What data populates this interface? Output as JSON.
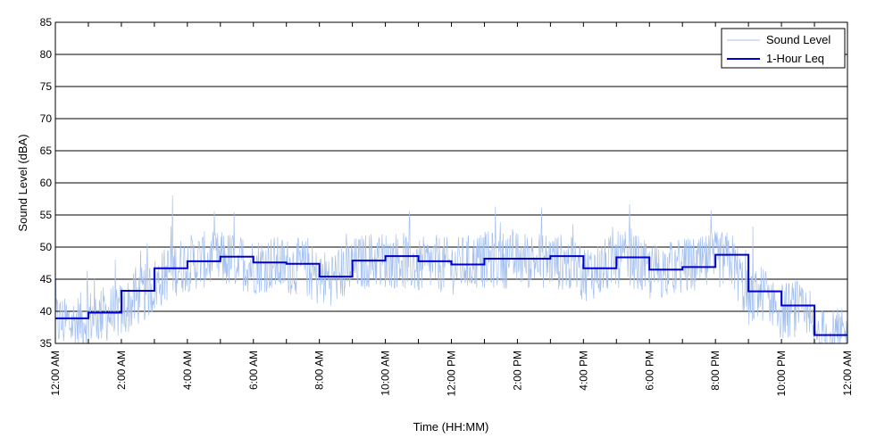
{
  "chart_data": {
    "type": "line",
    "title": "",
    "xlabel": "Time (HH:MM)",
    "ylabel": "Sound Level (dBA)",
    "ylim": [
      35,
      85
    ],
    "y_ticks": [
      "35",
      "40",
      "45",
      "50",
      "55",
      "60",
      "65",
      "70",
      "75",
      "80",
      "85"
    ],
    "xlim_hours": [
      0,
      24
    ],
    "x_ticks": [
      "12:00 AM",
      "2:00 AM",
      "4:00 AM",
      "6:00 AM",
      "8:00 AM",
      "10:00 AM",
      "12:00 PM",
      "2:00 PM",
      "4:00 PM",
      "6:00 PM",
      "8:00 PM",
      "10:00 PM",
      "12:00 AM"
    ],
    "grid": "horizontal",
    "legend_position": "top-right",
    "legend": [
      "Sound Level",
      "1-Hour Leq"
    ],
    "colors": {
      "sound_level": "#a4c0f0",
      "leq": "#0000cc"
    },
    "series": [
      {
        "name": "Sound Level",
        "type": "line",
        "x_hours": [
          0,
          0.5,
          1,
          1.5,
          2,
          2.5,
          3,
          3.5,
          4,
          4.5,
          5,
          5.5,
          6,
          6.5,
          7,
          7.5,
          8,
          8.5,
          9,
          9.5,
          10,
          10.5,
          11,
          11.5,
          12,
          12.5,
          13,
          13.5,
          14,
          14.5,
          15,
          15.5,
          16,
          16.5,
          17,
          17.5,
          18,
          18.5,
          19,
          19.5,
          20,
          20.5,
          21,
          21.5,
          22,
          22.5,
          23,
          23.5,
          24
        ],
        "values": [
          38.5,
          38,
          39,
          39.5,
          40,
          42,
          44,
          46.5,
          47.5,
          48,
          48,
          48,
          47,
          47.5,
          47,
          47,
          45,
          45.5,
          47,
          48,
          48,
          48,
          47,
          47.5,
          47,
          47.5,
          48,
          48,
          48,
          48,
          48,
          47.5,
          46,
          46.5,
          48,
          48,
          46,
          46.5,
          47,
          47,
          48,
          48,
          42,
          43,
          40,
          40.5,
          36,
          36,
          36
        ]
      },
      {
        "name": "1-Hour Leq",
        "type": "step",
        "hours": [
          0,
          1,
          2,
          3,
          4,
          5,
          6,
          7,
          8,
          9,
          10,
          11,
          12,
          13,
          14,
          15,
          16,
          17,
          18,
          19,
          20,
          21,
          22,
          23
        ],
        "values": [
          38.9,
          39.8,
          43.2,
          46.7,
          47.8,
          48.5,
          47.6,
          47.4,
          45.4,
          47.9,
          48.6,
          47.8,
          47.3,
          48.2,
          48.2,
          48.6,
          46.7,
          48.4,
          46.5,
          46.9,
          48.8,
          43.1,
          40.9,
          36.3
        ]
      }
    ]
  }
}
